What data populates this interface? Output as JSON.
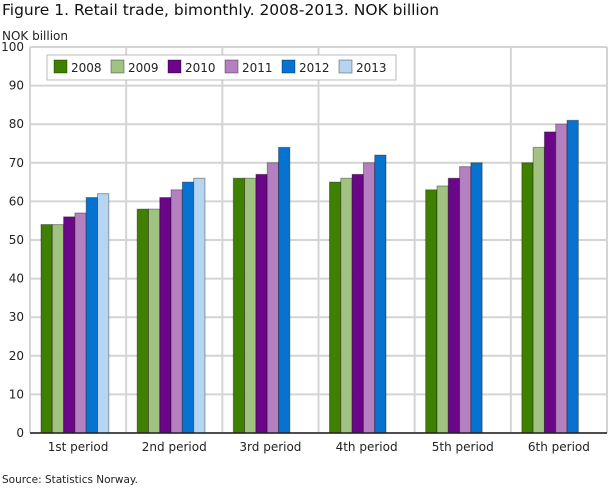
{
  "chart_data": {
    "type": "bar",
    "title": "Figure 1. Retail trade, bimonthly. 2008-2013. NOK billion",
    "ylabel": "NOK billion",
    "ylim": [
      0,
      100
    ],
    "yticks": [
      0,
      10,
      20,
      30,
      40,
      50,
      60,
      70,
      80,
      90,
      100
    ],
    "grid": true,
    "legend": "top-left",
    "categories": [
      "1st period",
      "2nd period",
      "3rd period",
      "4th period",
      "5th period",
      "6th period"
    ],
    "series": [
      {
        "name": "2008",
        "color": "#3f8000",
        "values": [
          54,
          58,
          66,
          65,
          63,
          70
        ]
      },
      {
        "name": "2009",
        "color": "#a0c382",
        "values": [
          54,
          58,
          66,
          66,
          64,
          74
        ]
      },
      {
        "name": "2010",
        "color": "#6a0687",
        "values": [
          56,
          61,
          67,
          67,
          66,
          78
        ]
      },
      {
        "name": "2011",
        "color": "#b580c0",
        "values": [
          57,
          63,
          70,
          70,
          69,
          80
        ]
      },
      {
        "name": "2012",
        "color": "#0673d0",
        "values": [
          61,
          65,
          74,
          72,
          70,
          81
        ]
      },
      {
        "name": "2013",
        "color": "#b7d5f0",
        "values": [
          62,
          66,
          null,
          null,
          null,
          null
        ]
      }
    ]
  },
  "source": "Source: Statistics Norway."
}
